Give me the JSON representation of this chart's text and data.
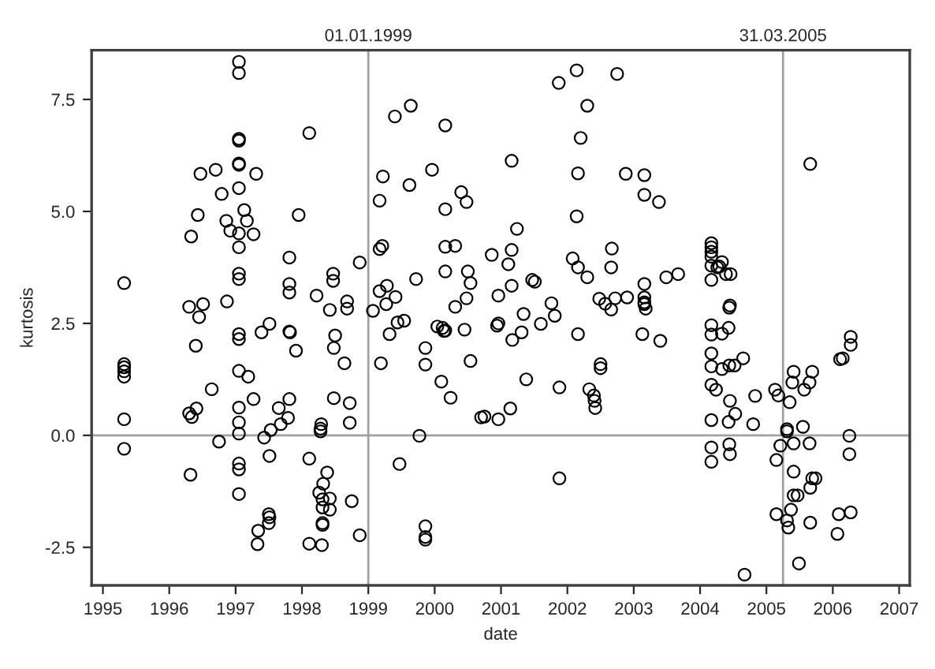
{
  "chart_data": {
    "type": "scatter",
    "xlabel": "date",
    "ylabel": "kurtosis",
    "xlim": [
      1994.83,
      2007.16
    ],
    "ylim": [
      -3.35,
      8.6
    ],
    "xticks": [
      1995,
      1996,
      1997,
      1998,
      1999,
      2000,
      2001,
      2002,
      2003,
      2004,
      2005,
      2006,
      2007
    ],
    "yticks": [
      {
        "value": -2.5,
        "label": "-2.5"
      },
      {
        "value": 0,
        "label": "0.0"
      },
      {
        "value": 2.5,
        "label": "2.5"
      },
      {
        "value": 5,
        "label": "5.0"
      },
      {
        "value": 7.5,
        "label": "7.5"
      }
    ],
    "grid": false,
    "marker": "circle",
    "ref_lines": [
      {
        "axis": "x",
        "value": 1999.0,
        "label": "01.01.1999",
        "color": "#a0a0a0"
      },
      {
        "axis": "x",
        "value": 2005.25,
        "label": "31.03.2005",
        "color": "#a0a0a0"
      },
      {
        "axis": "y",
        "value": 0,
        "color": "#a0a0a0"
      }
    ],
    "series": [
      {
        "color": "#000000",
        "x": [
          1995.32,
          1995.32,
          1995.32,
          1995.32,
          1995.32,
          1995.32,
          1995.32,
          1996.33,
          1996.43,
          1996.47,
          1996.45,
          1996.51,
          1996.4,
          1996.3,
          1996.3,
          1996.34,
          1996.41,
          1996.32,
          1996.64,
          1996.7,
          1996.79,
          1996.75,
          1996.87,
          1996.86,
          1996.92,
          1997.05,
          1997.05,
          1997.05,
          1997.05,
          1997.05,
          1997.05,
          1997.05,
          1997.05,
          1997.05,
          1997.05,
          1997.05,
          1997.05,
          1997.05,
          1997.05,
          1997.05,
          1997.05,
          1997.05,
          1997.05,
          1997.05,
          1997.05,
          1997.13,
          1997.17,
          1997.27,
          1997.31,
          1997.19,
          1997.27,
          1997.39,
          1997.51,
          1997.34,
          1997.33,
          1997.5,
          1997.5,
          1997.51,
          1997.51,
          1997.43,
          1997.53,
          1997.65,
          1997.68,
          1997.79,
          1997.81,
          1997.81,
          1997.81,
          1997.81,
          1997.81,
          1997.82,
          1997.91,
          1997.95,
          1998.11,
          1998.11,
          1998.11,
          1998.22,
          1998.28,
          1998.29,
          1998.28,
          1998.38,
          1998.32,
          1998.26,
          1998.31,
          1998.31,
          1998.31,
          1998.31,
          1998.42,
          1998.42,
          1998.3,
          1998.42,
          1998.47,
          1998.47,
          1998.5,
          1998.48,
          1998.48,
          1998.64,
          1998.68,
          1998.68,
          1998.72,
          1998.72,
          1998.75,
          1998.87,
          1998.87,
          1999.07,
          1999.17,
          1999.22,
          1999.17,
          1999.21,
          1999.17,
          1999.28,
          1999.27,
          1999.41,
          1999.44,
          1999.54,
          1999.32,
          1999.19,
          1999.4,
          1999.64,
          1999.62,
          1999.47,
          1999.72,
          1999.77,
          1999.86,
          1999.86,
          1999.86,
          1999.86,
          1999.86,
          1999.96,
          2000.16,
          2000.16,
          2000.16,
          2000.16,
          2000.04,
          2000.12,
          2000.14,
          2000.16,
          2000.1,
          2000.24,
          2000.31,
          2000.31,
          2000.4,
          2000.48,
          2000.45,
          2000.48,
          2000.5,
          2000.54,
          2000.54,
          2000.7,
          2000.75,
          2000.86,
          2000.96,
          2000.96,
          2000.94,
          2000.96,
          2001.11,
          2001.16,
          2001.16,
          2001.16,
          2001.17,
          2001.14,
          2001.24,
          2001.31,
          2001.34,
          2001.38,
          2001.47,
          2001.51,
          2001.6,
          2001.76,
          2001.81,
          2001.87,
          2001.88,
          2001.88,
          2002.08,
          2002.14,
          2002.14,
          2002.16,
          2002.16,
          2002.16,
          2002.2,
          2002.3,
          2002.3,
          2002.33,
          2002.4,
          2002.41,
          2002.42,
          2002.48,
          2002.5,
          2002.5,
          2002.57,
          2002.66,
          2002.67,
          2002.66,
          2002.72,
          2002.75,
          2002.88,
          2002.9,
          2003.16,
          2003.16,
          2003.16,
          2003.16,
          2003.16,
          2003.16,
          2003.18,
          2003.13,
          2003.38,
          2003.4,
          2003.49,
          2003.67,
          2004.17,
          2004.17,
          2004.17,
          2004.17,
          2004.17,
          2004.17,
          2004.17,
          2004.17,
          2004.17,
          2004.17,
          2004.17,
          2004.17,
          2004.17,
          2004.17,
          2004.26,
          2004.29,
          2004.33,
          2004.39,
          2004.46,
          2004.24,
          2004.33,
          2004.43,
          2004.44,
          2004.45,
          2004.33,
          2004.44,
          2004.52,
          2004.65,
          2004.45,
          2004.43,
          2004.53,
          2004.44,
          2004.45,
          2004.67,
          2004.83,
          2004.8,
          2005.13,
          2005.18,
          2005.35,
          2005.31,
          2005.31,
          2005.21,
          2005.15,
          2005.41,
          2005.39,
          2005.41,
          2005.41,
          2005.15,
          2005.37,
          2005.31,
          2005.33,
          2005.41,
          2005.47,
          2005.49,
          2005.66,
          2005.69,
          2005.65,
          2005.57,
          2005.55,
          2005.65,
          2005.66,
          2005.69,
          2005.74,
          2005.66,
          2006.07,
          2006.09,
          2006.11,
          2006.15,
          2006.27,
          2006.27,
          2006.25,
          2006.25,
          2006.27
        ],
        "values": [
          3.4,
          1.59,
          1.52,
          1.43,
          1.31,
          0.36,
          -0.3,
          4.44,
          4.92,
          5.84,
          2.64,
          2.93,
          2.0,
          2.87,
          0.49,
          0.41,
          0.6,
          -0.88,
          1.03,
          5.93,
          5.39,
          -0.14,
          2.99,
          4.79,
          4.57,
          8.34,
          8.09,
          6.62,
          6.58,
          6.07,
          6.04,
          5.52,
          4.51,
          4.2,
          3.61,
          3.49,
          2.26,
          2.15,
          1.44,
          0.62,
          0.29,
          0.04,
          -0.63,
          -0.76,
          -1.31,
          5.03,
          4.79,
          4.49,
          5.84,
          1.31,
          0.81,
          2.3,
          2.49,
          -2.13,
          -2.43,
          -1.76,
          -1.96,
          -1.83,
          -0.46,
          -0.05,
          0.12,
          0.61,
          0.25,
          0.39,
          0.81,
          3.38,
          3.19,
          3.97,
          2.32,
          2.3,
          1.89,
          4.92,
          6.75,
          -0.52,
          -2.42,
          3.12,
          0.15,
          0.25,
          0.09,
          -0.83,
          -1.08,
          -1.28,
          -1.43,
          -1.61,
          -1.96,
          -2.0,
          -1.41,
          -1.66,
          -2.45,
          2.8,
          3.45,
          3.61,
          2.23,
          1.95,
          0.83,
          1.61,
          2.99,
          2.83,
          0.72,
          0.28,
          -1.47,
          3.86,
          -2.23,
          2.78,
          5.24,
          5.78,
          4.16,
          4.23,
          3.22,
          3.34,
          2.93,
          3.09,
          2.52,
          2.56,
          2.26,
          1.61,
          7.12,
          7.36,
          5.59,
          -0.64,
          3.49,
          -0.01,
          1.95,
          1.58,
          -2.03,
          -2.27,
          -2.33,
          5.93,
          6.92,
          5.05,
          4.21,
          3.66,
          2.43,
          2.4,
          2.33,
          2.34,
          1.2,
          0.84,
          2.87,
          4.23,
          5.43,
          5.21,
          2.36,
          3.06,
          3.66,
          3.4,
          1.66,
          0.4,
          0.42,
          4.03,
          3.12,
          2.5,
          2.45,
          0.36,
          3.82,
          4.14,
          6.13,
          3.34,
          2.13,
          0.6,
          4.61,
          2.3,
          2.71,
          1.25,
          3.47,
          3.43,
          2.49,
          2.95,
          2.67,
          7.87,
          1.07,
          -0.96,
          3.95,
          8.15,
          4.89,
          5.85,
          3.75,
          2.26,
          6.64,
          7.36,
          3.53,
          1.03,
          0.89,
          0.77,
          0.61,
          3.05,
          1.59,
          1.5,
          2.94,
          2.81,
          4.17,
          3.75,
          3.06,
          8.07,
          5.84,
          3.08,
          5.81,
          5.37,
          3.38,
          3.08,
          2.97,
          2.93,
          2.83,
          2.26,
          5.21,
          2.11,
          3.53,
          3.6,
          4.29,
          4.2,
          4.1,
          3.99,
          3.79,
          3.47,
          2.46,
          2.25,
          1.83,
          1.54,
          1.13,
          0.34,
          -0.27,
          -0.59,
          3.75,
          3.77,
          3.87,
          3.6,
          3.6,
          1.02,
          2.27,
          2.4,
          2.85,
          2.9,
          1.48,
          1.56,
          1.56,
          1.72,
          0.77,
          0.3,
          0.48,
          -0.2,
          -0.42,
          -3.11,
          0.88,
          0.25,
          1.02,
          0.89,
          0.74,
          0.14,
          0.09,
          -0.23,
          -0.55,
          1.42,
          1.18,
          -0.18,
          -0.81,
          -1.76,
          -1.66,
          -1.9,
          -2.06,
          -1.34,
          -1.34,
          -2.86,
          6.06,
          1.42,
          1.18,
          1.02,
          0.19,
          -0.18,
          -1.17,
          -0.96,
          -0.96,
          -1.95,
          -2.2,
          -1.76,
          1.7,
          1.72,
          2.2,
          2.02,
          -0.01,
          -0.42,
          -1.72
        ]
      }
    ]
  }
}
